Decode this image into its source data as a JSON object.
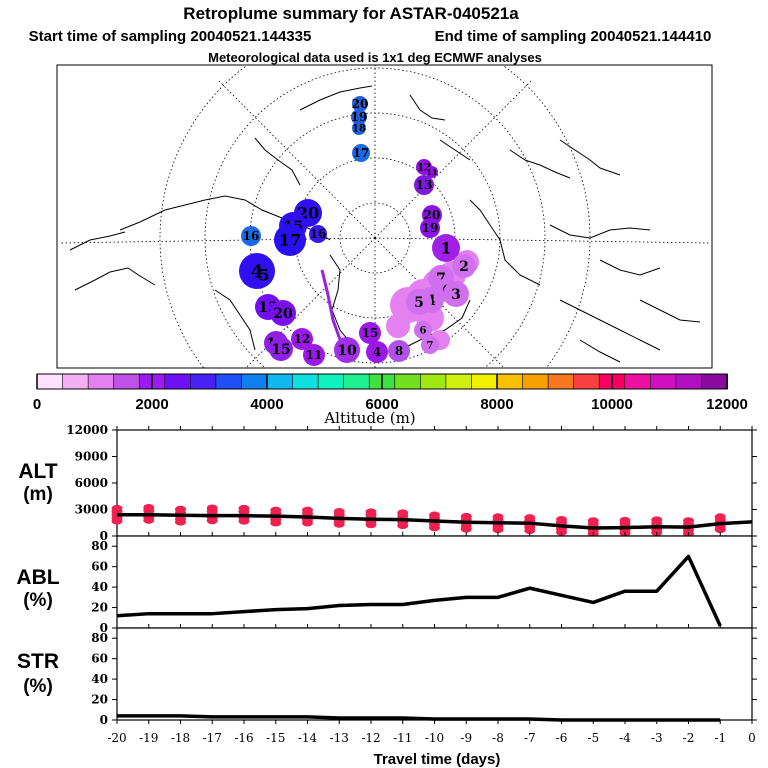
{
  "header": {
    "title": "Retroplume summary for ASTAR-040521a",
    "start_time": "Start time of sampling 20040521.144335",
    "end_time": "End time of sampling 20040521.144410",
    "met_data": "Meteorological data used is 1x1 deg ECMWF analyses"
  },
  "colorbar": {
    "label": "Altitude (m)",
    "tick_labels": [
      "0",
      "2000",
      "4000",
      "6000",
      "8000",
      "10000",
      "12000"
    ],
    "colors": [
      "#fde0fd",
      "#f5b0f5",
      "#e480f0",
      "#c050e8",
      "#9b1bf0",
      "#7010f8",
      "#4822f5",
      "#2050f5",
      "#1080f0",
      "#10b8f0",
      "#10e0e0",
      "#10f0c0",
      "#20f090",
      "#40e040",
      "#70e020",
      "#a0e810",
      "#d0f010",
      "#f0f000",
      "#f8c000",
      "#f8a000",
      "#f87820",
      "#f84040",
      "#f80060",
      "#f010a0",
      "#d010c0",
      "#b010c0",
      "#8a0aa0"
    ]
  },
  "map": {
    "trajectory_points": [
      {
        "label": "20",
        "color": "#2060e0"
      },
      {
        "label": "19",
        "color": "#2060e0"
      },
      {
        "label": "18",
        "color": "#2060e0"
      },
      {
        "label": "17",
        "color": "#1a6ae8"
      },
      {
        "label": "12",
        "color": "#9010e0"
      },
      {
        "label": "11",
        "color": "#9010e0"
      },
      {
        "label": "13",
        "color": "#8018e0"
      },
      {
        "label": "20",
        "color": "#8a14e8"
      },
      {
        "label": "19",
        "color": "#8a14e8"
      },
      {
        "label": "1",
        "color": "#a020e8"
      },
      {
        "label": "20",
        "color": "#3010f0"
      },
      {
        "label": "15",
        "color": "#3010f0"
      },
      {
        "label": "17",
        "color": "#2810f0"
      },
      {
        "label": "16",
        "color": "#3818f0"
      },
      {
        "label": "16",
        "color": "#1a6ae8"
      },
      {
        "label": "4",
        "color": "#3010f0"
      },
      {
        "label": "5",
        "color": "#3010f0"
      },
      {
        "label": "2",
        "color": "#d070f0"
      },
      {
        "label": "7",
        "color": "#d070f0"
      },
      {
        "label": "6",
        "color": "#d070f0"
      },
      {
        "label": "3",
        "color": "#d070f0"
      },
      {
        "label": "4",
        "color": "#d070f0"
      },
      {
        "label": "5",
        "color": "#d070f0"
      },
      {
        "label": "13",
        "color": "#7010f0"
      },
      {
        "label": "20",
        "color": "#7a10f0"
      },
      {
        "label": "14",
        "color": "#9020e8"
      },
      {
        "label": "15",
        "color": "#9020e8"
      },
      {
        "label": "12",
        "color": "#9a18e8"
      },
      {
        "label": "11",
        "color": "#9a18e8"
      },
      {
        "label": "10",
        "color": "#a030e8"
      },
      {
        "label": "15",
        "color": "#9a18e8"
      },
      {
        "label": "4",
        "color": "#9a18e8"
      },
      {
        "label": "8",
        "color": "#b050e8"
      },
      {
        "label": "6",
        "color": "#d070f0"
      },
      {
        "label": "7",
        "color": "#d070f0"
      }
    ]
  },
  "panels": {
    "alt": {
      "label_line1": "ALT",
      "label_line2": "(m)"
    },
    "abl": {
      "label_line1": "ABL",
      "label_line2": "(%)"
    },
    "str": {
      "label_line1": "STR",
      "label_line2": "(%)"
    }
  },
  "chart_data": [
    {
      "type": "line",
      "title": "ALT (m)",
      "x": [
        -20,
        -19,
        -18,
        -17,
        -16,
        -15,
        -14,
        -13,
        -12,
        -11,
        -10,
        -9,
        -8,
        -7,
        -6,
        -5,
        -4,
        -3,
        -2,
        -1,
        0
      ],
      "series": [
        {
          "name": "mean altitude",
          "values": [
            2400,
            2400,
            2350,
            2300,
            2300,
            2250,
            2150,
            2000,
            1900,
            1850,
            1700,
            1550,
            1500,
            1450,
            1150,
            900,
            950,
            1050,
            1000,
            1400,
            1600
          ]
        },
        {
          "name": "particle altitudes (red dots)",
          "values": [
            2400,
            2500,
            2300,
            2450,
            2400,
            2200,
            2200,
            2050,
            2000,
            1900,
            1650,
            1500,
            1450,
            1350,
            1150,
            1000,
            1050,
            1100,
            1000,
            1450,
            null
          ]
        }
      ],
      "ylim": [
        0,
        12000
      ],
      "yticks": [
        "0",
        "3000",
        "6000",
        "9000",
        "12000"
      ],
      "xlim": [
        -20,
        0
      ],
      "xlabel": "",
      "ylabel": "ALT (m)"
    },
    {
      "type": "line",
      "title": "ABL (%)",
      "x": [
        -20,
        -19,
        -18,
        -17,
        -16,
        -15,
        -14,
        -13,
        -12,
        -11,
        -10,
        -9,
        -8,
        -7,
        -6,
        -5,
        -4,
        -3,
        -2,
        -1
      ],
      "series": [
        {
          "name": "ABL fraction",
          "values": [
            12,
            14,
            14,
            14,
            16,
            18,
            19,
            22,
            23,
            23,
            27,
            30,
            30,
            39,
            32,
            25,
            36,
            36,
            70,
            2
          ]
        }
      ],
      "ylim": [
        0,
        90
      ],
      "yticks": [
        "0",
        "20",
        "40",
        "60",
        "80"
      ],
      "xlim": [
        -20,
        0
      ],
      "xlabel": "",
      "ylabel": "ABL (%)"
    },
    {
      "type": "line",
      "title": "STR (%)",
      "x": [
        -20,
        -19,
        -18,
        -17,
        -16,
        -15,
        -14,
        -13,
        -12,
        -11,
        -10,
        -9,
        -8,
        -7,
        -6,
        -5,
        -4,
        -3,
        -2,
        -1
      ],
      "series": [
        {
          "name": "STR fraction",
          "values": [
            4,
            4,
            4,
            3,
            3,
            3,
            3,
            2,
            2,
            2,
            1,
            1,
            1,
            1,
            0,
            0,
            0,
            0,
            0,
            0
          ]
        }
      ],
      "ylim": [
        0,
        90
      ],
      "yticks": [
        "0",
        "20",
        "40",
        "60",
        "80"
      ],
      "xlim": [
        -20,
        0
      ],
      "xticks": [
        "-20",
        "-19",
        "-18",
        "-17",
        "-16",
        "-15",
        "-14",
        "-13",
        "-12",
        "-11",
        "-10",
        "-9",
        "-8",
        "-7",
        "-6",
        "-5",
        "-4",
        "-3",
        "-2",
        "-1",
        "0"
      ],
      "xlabel": "Travel time (days)",
      "ylabel": "STR (%)"
    }
  ]
}
